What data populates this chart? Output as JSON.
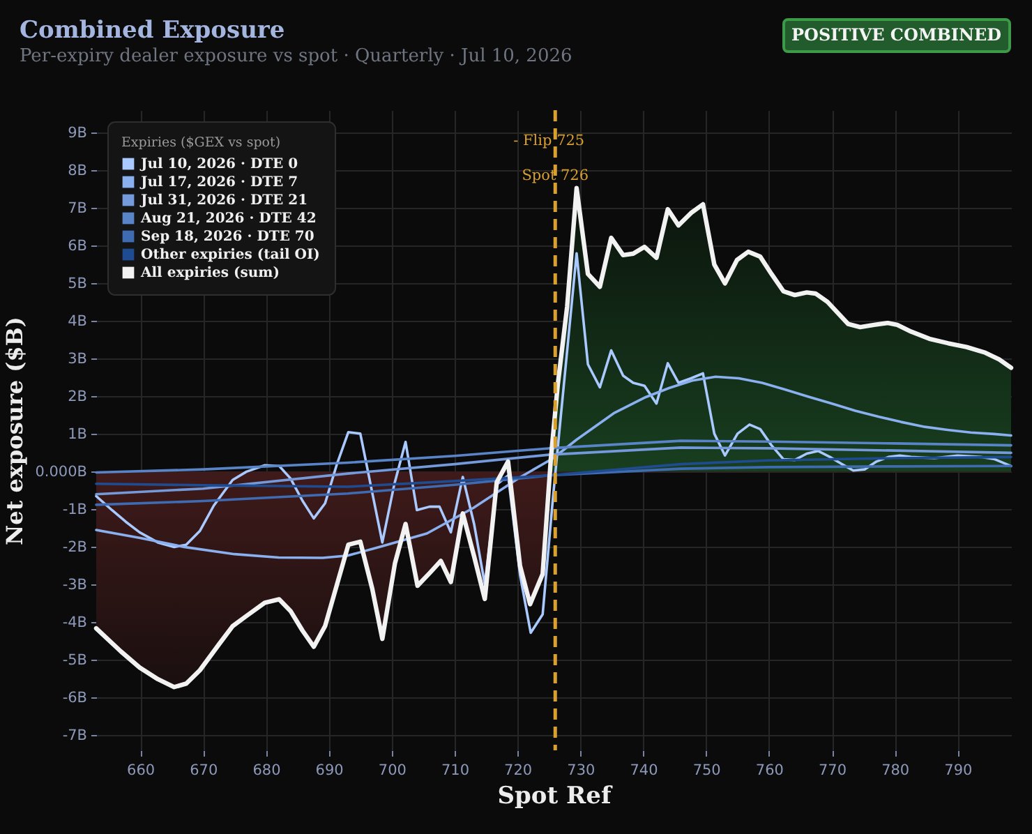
{
  "chart_data": {
    "type": "line",
    "title": "Combined Exposure",
    "subtitle": "Per-expiry dealer exposure vs spot · Quarterly · Jul 10, 2026",
    "xlabel": "Spot Ref",
    "ylabel": "Net exposure ($B)",
    "legend_title": "Expiries ($GEX vs spot)",
    "legend": "top left",
    "grid": true,
    "xlim": [
      653,
      798.5
    ],
    "xticks": [
      660,
      670,
      680,
      690,
      700,
      710,
      720,
      730,
      740,
      750,
      760,
      770,
      780,
      790
    ],
    "ylim": [
      -7.4,
      9.6
    ],
    "yticks": [
      {
        "value": -7,
        "label": "-7B"
      },
      {
        "value": -6,
        "label": "-6B"
      },
      {
        "value": -5,
        "label": "-5B"
      },
      {
        "value": -4,
        "label": "-4B"
      },
      {
        "value": -3,
        "label": "-3B"
      },
      {
        "value": -2,
        "label": "-2B"
      },
      {
        "value": -1,
        "label": "-1B"
      },
      {
        "value": 0,
        "label": "0.000B"
      },
      {
        "value": 1,
        "label": "1B"
      },
      {
        "value": 2,
        "label": "2B"
      },
      {
        "value": 3,
        "label": "3B"
      },
      {
        "value": 4,
        "label": "4B"
      },
      {
        "value": 5,
        "label": "5B"
      },
      {
        "value": 6,
        "label": "6B"
      },
      {
        "value": 7,
        "label": "7B"
      },
      {
        "value": 8,
        "label": "8B"
      },
      {
        "value": 9,
        "label": "9B"
      }
    ],
    "ref_lines": [
      {
        "axis": "x",
        "value": 726,
        "label": "Spot 726",
        "color": "#d9a030",
        "line_style": "dashed"
      }
    ],
    "annotations": [
      "POSITIVE COMBINED",
      {
        "text": "- Flip 725",
        "x": 725
      }
    ],
    "series": [
      {
        "name": "Jul 10, 2026 · DTE 0",
        "color": "#a9c9ff",
        "x": [
          653,
          655.5,
          657.7,
          659.9,
          662.8,
          665.4,
          667.3,
          669.5,
          671.7,
          674.7,
          676.9,
          679.8,
          682.1,
          683.9,
          685.8,
          687.6,
          689.4,
          691.3,
          693.1,
          695,
          698.5,
          700.4,
          702.2,
          704,
          706,
          707.6,
          709.4,
          711.3,
          713.1,
          714.8,
          716.7,
          718.5,
          720.4,
          722.1,
          724,
          725.6,
          726.8,
          729.4,
          731.2,
          733.1,
          734.9,
          736.8,
          738.4,
          740.2,
          742.1,
          743.9,
          745.6,
          747.6,
          749.5,
          751.3,
          753,
          755,
          756.9,
          758.6,
          760.4,
          762.3,
          764.1,
          766,
          767.8,
          769.7,
          771.5,
          773.4,
          775.2,
          777.1,
          779,
          780.8,
          782.6,
          786.3,
          790,
          793.7,
          795.9,
          798.5
        ],
        "values": [
          -0.65,
          -1.02,
          -1.33,
          -1.61,
          -1.88,
          -2.0,
          -1.94,
          -1.57,
          -0.9,
          -0.22,
          0.0,
          0.17,
          0.15,
          -0.18,
          -0.77,
          -1.24,
          -0.84,
          0.21,
          1.05,
          1.01,
          -1.88,
          -0.34,
          0.79,
          -1.02,
          -0.93,
          -0.93,
          -1.61,
          -0.14,
          -1.39,
          -2.99,
          -0.34,
          -0.1,
          -2.74,
          -4.28,
          -3.79,
          -0.77,
          1.32,
          5.8,
          2.85,
          2.24,
          3.22,
          2.55,
          2.36,
          2.28,
          1.81,
          2.88,
          2.36,
          2.48,
          2.61,
          1.01,
          0.43,
          1.01,
          1.25,
          1.13,
          0.7,
          0.33,
          0.31,
          0.48,
          0.55,
          0.39,
          0.21,
          0.03,
          0.06,
          0.27,
          0.39,
          0.43,
          0.39,
          0.36,
          0.43,
          0.39,
          0.33,
          0.15
        ]
      },
      {
        "name": "Jul 17, 2026 · DTE 7",
        "color": "#8bb0f0",
        "x": [
          653,
          660,
          667,
          675,
          682,
          689,
          693,
          698,
          705.6,
          713,
          720.4,
          725.6,
          729.4,
          735.3,
          740.4,
          744.1,
          747.8,
          751.5,
          755.2,
          758.9,
          762.6,
          766.3,
          770,
          773.7,
          777.4,
          781,
          784.8,
          788.4,
          792.1,
          795.8,
          798.5
        ],
        "values": [
          -1.55,
          -1.76,
          -2.0,
          -2.19,
          -2.28,
          -2.29,
          -2.23,
          -2.0,
          -1.64,
          -0.96,
          -0.15,
          0.35,
          0.85,
          1.55,
          1.98,
          2.22,
          2.42,
          2.52,
          2.48,
          2.36,
          2.18,
          1.99,
          1.81,
          1.62,
          1.46,
          1.32,
          1.19,
          1.11,
          1.04,
          1.0,
          0.96
        ]
      },
      {
        "name": "Jul 31, 2026 · DTE 21",
        "color": "#749adc",
        "x": [
          653,
          670,
          693,
          710,
          725,
          746,
          760,
          780,
          798.5
        ],
        "values": [
          -0.6,
          -0.45,
          -0.05,
          0.2,
          0.45,
          0.64,
          0.62,
          0.56,
          0.5
        ]
      },
      {
        "name": "Aug 21, 2026 · DTE 42",
        "color": "#5a84c8",
        "x": [
          653,
          670,
          693,
          710,
          725,
          746,
          760,
          780,
          798.5
        ],
        "values": [
          -0.02,
          0.06,
          0.24,
          0.42,
          0.62,
          0.82,
          0.8,
          0.75,
          0.7
        ]
      },
      {
        "name": "Sep 18, 2026 · DTE 70",
        "color": "#3f6bb2",
        "x": [
          653,
          670,
          693,
          710,
          725,
          746,
          760,
          780,
          798.5
        ],
        "values": [
          -0.88,
          -0.78,
          -0.58,
          -0.35,
          -0.1,
          0.08,
          0.12,
          0.14,
          0.15
        ]
      },
      {
        "name": "Other expiries (tail OI)",
        "color": "#1f4b91",
        "x": [
          653,
          670,
          693,
          710,
          725,
          746,
          760,
          780,
          798.5
        ],
        "values": [
          -0.32,
          -0.36,
          -0.4,
          -0.25,
          -0.1,
          0.2,
          0.3,
          0.36,
          0.39
        ]
      },
      {
        "name": "All expiries (sum)",
        "color": "#f2f2f2",
        "type": "area",
        "x": [
          653,
          656.9,
          659.9,
          662.8,
          665.4,
          667.3,
          669.5,
          672.5,
          674.7,
          676.9,
          679.8,
          682.1,
          683.9,
          685.8,
          687.6,
          689.4,
          691.3,
          693.1,
          695,
          696.9,
          698.5,
          700.5,
          702.2,
          704.1,
          706.1,
          707.8,
          709.4,
          711.3,
          713.1,
          714.8,
          716.7,
          718.5,
          720.4,
          722,
          724,
          725.3,
          726.4,
          727.9,
          729.4,
          731.2,
          733.1,
          734.9,
          736.8,
          738.4,
          740.2,
          742.1,
          743.9,
          745.6,
          747.6,
          749.5,
          751.3,
          753,
          754.9,
          756.7,
          758.6,
          760.4,
          762.3,
          764.1,
          766,
          767.4,
          769.3,
          772.6,
          774.5,
          776.7,
          778.9,
          780.4,
          782.6,
          785.5,
          788.5,
          791.4,
          794.4,
          796.6,
          798.5
        ],
        "values": [
          -4.16,
          -4.77,
          -5.2,
          -5.51,
          -5.72,
          -5.63,
          -5.27,
          -4.59,
          -4.1,
          -3.83,
          -3.48,
          -3.39,
          -3.7,
          -4.22,
          -4.65,
          -4.1,
          -2.99,
          -1.94,
          -1.86,
          -3.11,
          -4.44,
          -2.44,
          -1.39,
          -3.03,
          -2.68,
          -2.37,
          -2.93,
          -1.11,
          -2.25,
          -3.38,
          -0.28,
          0.27,
          -2.5,
          -3.52,
          -2.72,
          0.33,
          2.3,
          4.39,
          7.53,
          5.25,
          4.91,
          6.21,
          5.75,
          5.79,
          5.97,
          5.68,
          6.97,
          6.54,
          6.87,
          7.1,
          5.5,
          5.0,
          5.62,
          5.84,
          5.71,
          5.25,
          4.79,
          4.69,
          4.76,
          4.73,
          4.51,
          3.92,
          3.84,
          3.9,
          3.95,
          3.9,
          3.72,
          3.53,
          3.41,
          3.31,
          3.16,
          2.98,
          2.76
        ]
      }
    ]
  }
}
